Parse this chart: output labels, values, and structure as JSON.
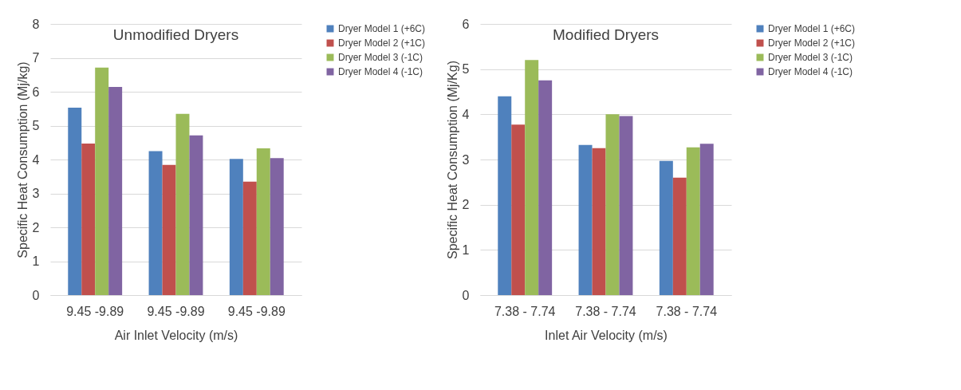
{
  "chart_data": [
    {
      "type": "bar",
      "title": "Unmodified Dryers",
      "xlabel": "Air Inlet Velocity (m/s)",
      "ylabel": "Specific Heat Consumption (Mj/kg)",
      "categories": [
        "9.45 -9.89",
        "9.45 -9.89",
        "9.45 -9.89"
      ],
      "ylim": [
        0,
        8
      ],
      "yticks": [
        0,
        1,
        2,
        3,
        4,
        5,
        6,
        7,
        8
      ],
      "grid": "y",
      "legend": "top right",
      "series": [
        {
          "name": "Dryer Model 1 (+6C)",
          "color": "#4f81bd",
          "values": [
            5.53,
            4.25,
            4.02
          ]
        },
        {
          "name": "Dryer Model 2 (+1C)",
          "color": "#c0504d",
          "values": [
            4.47,
            3.84,
            3.35
          ]
        },
        {
          "name": "Dryer Model 3 (-1C)",
          "color": "#9bbb59",
          "values": [
            6.71,
            5.35,
            4.33
          ]
        },
        {
          "name": "Dryer Model 4 (-1C)",
          "color": "#8064a2",
          "values": [
            6.14,
            4.71,
            4.04
          ]
        }
      ]
    },
    {
      "type": "bar",
      "title": "Modified Dryers",
      "xlabel": "Inlet Air Velocity (m/s)",
      "ylabel": "Specific Heat Consumption (Mj/Kg)",
      "categories": [
        "7.38 - 7.74",
        "7.38 - 7.74",
        "7.38 - 7.74"
      ],
      "ylim": [
        0,
        6
      ],
      "yticks": [
        0,
        1,
        2,
        3,
        4,
        5,
        6
      ],
      "grid": "y",
      "legend": "top right",
      "series": [
        {
          "name": "Dryer Model 1 (+6C)",
          "color": "#4f81bd",
          "values": [
            4.4,
            3.32,
            2.97
          ]
        },
        {
          "name": "Dryer Model 2 (+1C)",
          "color": "#c0504d",
          "values": [
            3.77,
            3.25,
            2.6
          ]
        },
        {
          "name": "Dryer Model 3 (-1C)",
          "color": "#9bbb59",
          "values": [
            5.2,
            4.0,
            3.27
          ]
        },
        {
          "name": "Dryer Model 4 (-1C)",
          "color": "#8064a2",
          "values": [
            4.75,
            3.96,
            3.35
          ]
        }
      ]
    }
  ]
}
